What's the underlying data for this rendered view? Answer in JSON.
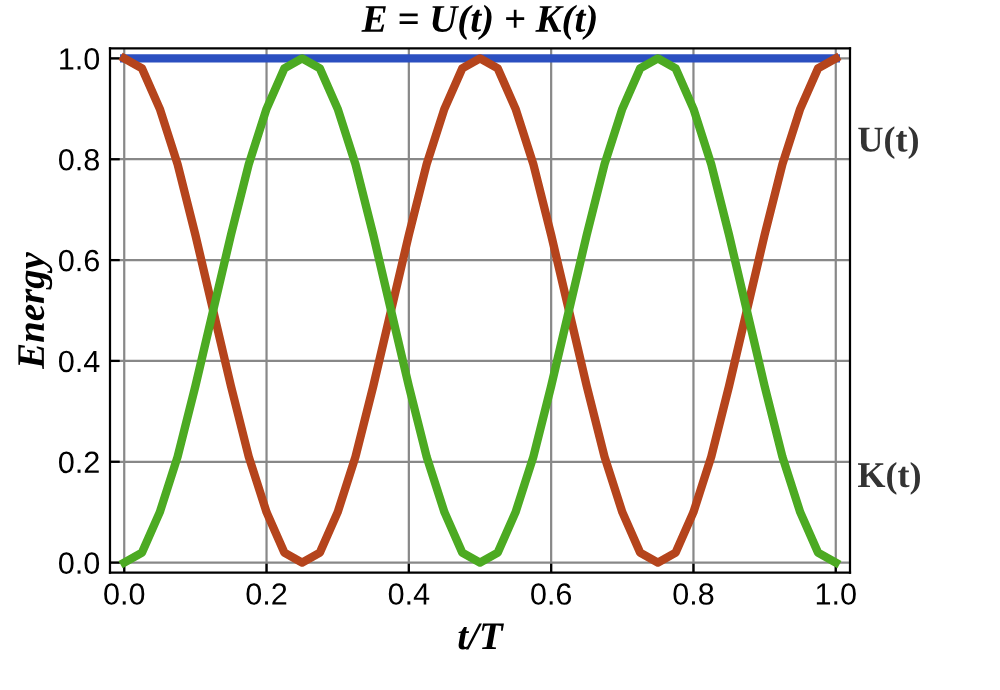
{
  "chart_data": {
    "type": "line",
    "title": "E = U(t) + K(t)",
    "xlabel": "t/T",
    "ylabel": "Energy",
    "x": [
      0,
      0.025,
      0.05,
      0.075,
      0.1,
      0.125,
      0.15,
      0.175,
      0.2,
      0.225,
      0.25,
      0.275,
      0.3,
      0.325,
      0.35,
      0.375,
      0.4,
      0.425,
      0.45,
      0.475,
      0.5,
      0.525,
      0.55,
      0.575,
      0.6,
      0.625,
      0.65,
      0.675,
      0.7,
      0.725,
      0.75,
      0.775,
      0.8,
      0.825,
      0.85,
      0.875,
      0.9,
      0.925,
      0.95,
      0.975,
      1
    ],
    "series": [
      {
        "color": "#2b4fc0",
        "values": [
          1,
          1,
          1,
          1,
          1,
          1,
          1,
          1,
          1,
          1,
          1,
          1,
          1,
          1,
          1,
          1,
          1,
          1,
          1,
          1,
          1,
          1,
          1,
          1,
          1,
          1,
          1,
          1,
          1,
          1,
          1,
          1,
          1,
          1,
          1,
          1,
          1,
          1,
          1,
          1,
          1
        ]
      },
      {
        "name": "U(t)",
        "color": "#b5441c",
        "values": [
          1,
          0.98,
          0.9,
          0.79,
          0.65,
          0.5,
          0.35,
          0.21,
          0.1,
          0.02,
          0,
          0.02,
          0.1,
          0.21,
          0.35,
          0.5,
          0.65,
          0.79,
          0.9,
          0.98,
          1,
          0.98,
          0.9,
          0.79,
          0.65,
          0.5,
          0.35,
          0.21,
          0.1,
          0.02,
          0,
          0.02,
          0.1,
          0.21,
          0.35,
          0.5,
          0.65,
          0.79,
          0.9,
          0.98,
          1
        ]
      },
      {
        "name": "K(t)",
        "color": "#4caa22",
        "values": [
          0,
          0.02,
          0.1,
          0.21,
          0.35,
          0.5,
          0.65,
          0.79,
          0.9,
          0.98,
          1,
          0.98,
          0.9,
          0.79,
          0.65,
          0.5,
          0.35,
          0.21,
          0.1,
          0.02,
          0,
          0.02,
          0.1,
          0.21,
          0.35,
          0.5,
          0.65,
          0.79,
          0.9,
          0.98,
          1,
          0.98,
          0.9,
          0.79,
          0.65,
          0.5,
          0.35,
          0.21,
          0.1,
          0.02,
          0
        ]
      }
    ],
    "xlim": [
      -0.02,
      1.02
    ],
    "ylim": [
      -0.02,
      1.02
    ],
    "xticks": [
      {
        "value": 0,
        "label": "0.0"
      },
      0.2,
      0.4,
      0.6,
      0.8,
      {
        "value": 1,
        "label": "1.0"
      }
    ],
    "yticks": [
      {
        "value": 0,
        "label": "0.0"
      },
      0.2,
      0.4,
      0.6,
      0.8,
      {
        "value": 1,
        "label": "1.0"
      }
    ],
    "grid": true,
    "legend": false,
    "marker": "none",
    "line_style": "solid"
  }
}
